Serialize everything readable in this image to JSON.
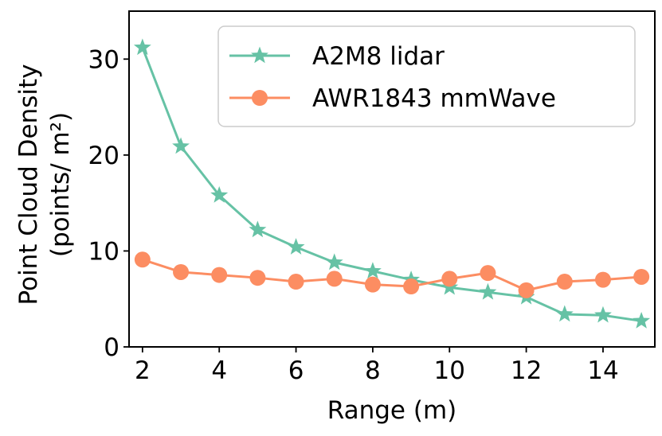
{
  "chart_data": {
    "type": "line",
    "title": "",
    "xlabel": "Range (m)",
    "ylabel_line1": "Point Cloud Density",
    "ylabel_line2": "(points/ m²)",
    "x": [
      2,
      3,
      4,
      5,
      6,
      7,
      8,
      9,
      10,
      11,
      12,
      13,
      14,
      15
    ],
    "xlim": [
      1.65,
      15.35
    ],
    "ylim": [
      0,
      35
    ],
    "xticks": [
      2,
      4,
      6,
      8,
      10,
      12,
      14
    ],
    "yticks": [
      0,
      10,
      20,
      30
    ],
    "grid": false,
    "legend_position": "top-right",
    "series": [
      {
        "name": "A2M8 lidar",
        "marker": "star",
        "color": "#66c2a5",
        "values": [
          31.2,
          20.9,
          15.8,
          12.2,
          10.4,
          8.8,
          7.9,
          7.0,
          6.2,
          5.7,
          5.2,
          3.4,
          3.3,
          2.7
        ]
      },
      {
        "name": "AWR1843 mmWave",
        "marker": "circle",
        "color": "#fc8d62",
        "values": [
          9.1,
          7.8,
          7.5,
          7.2,
          6.8,
          7.1,
          6.5,
          6.3,
          7.1,
          7.7,
          5.9,
          6.8,
          7.0,
          7.3
        ]
      }
    ]
  }
}
